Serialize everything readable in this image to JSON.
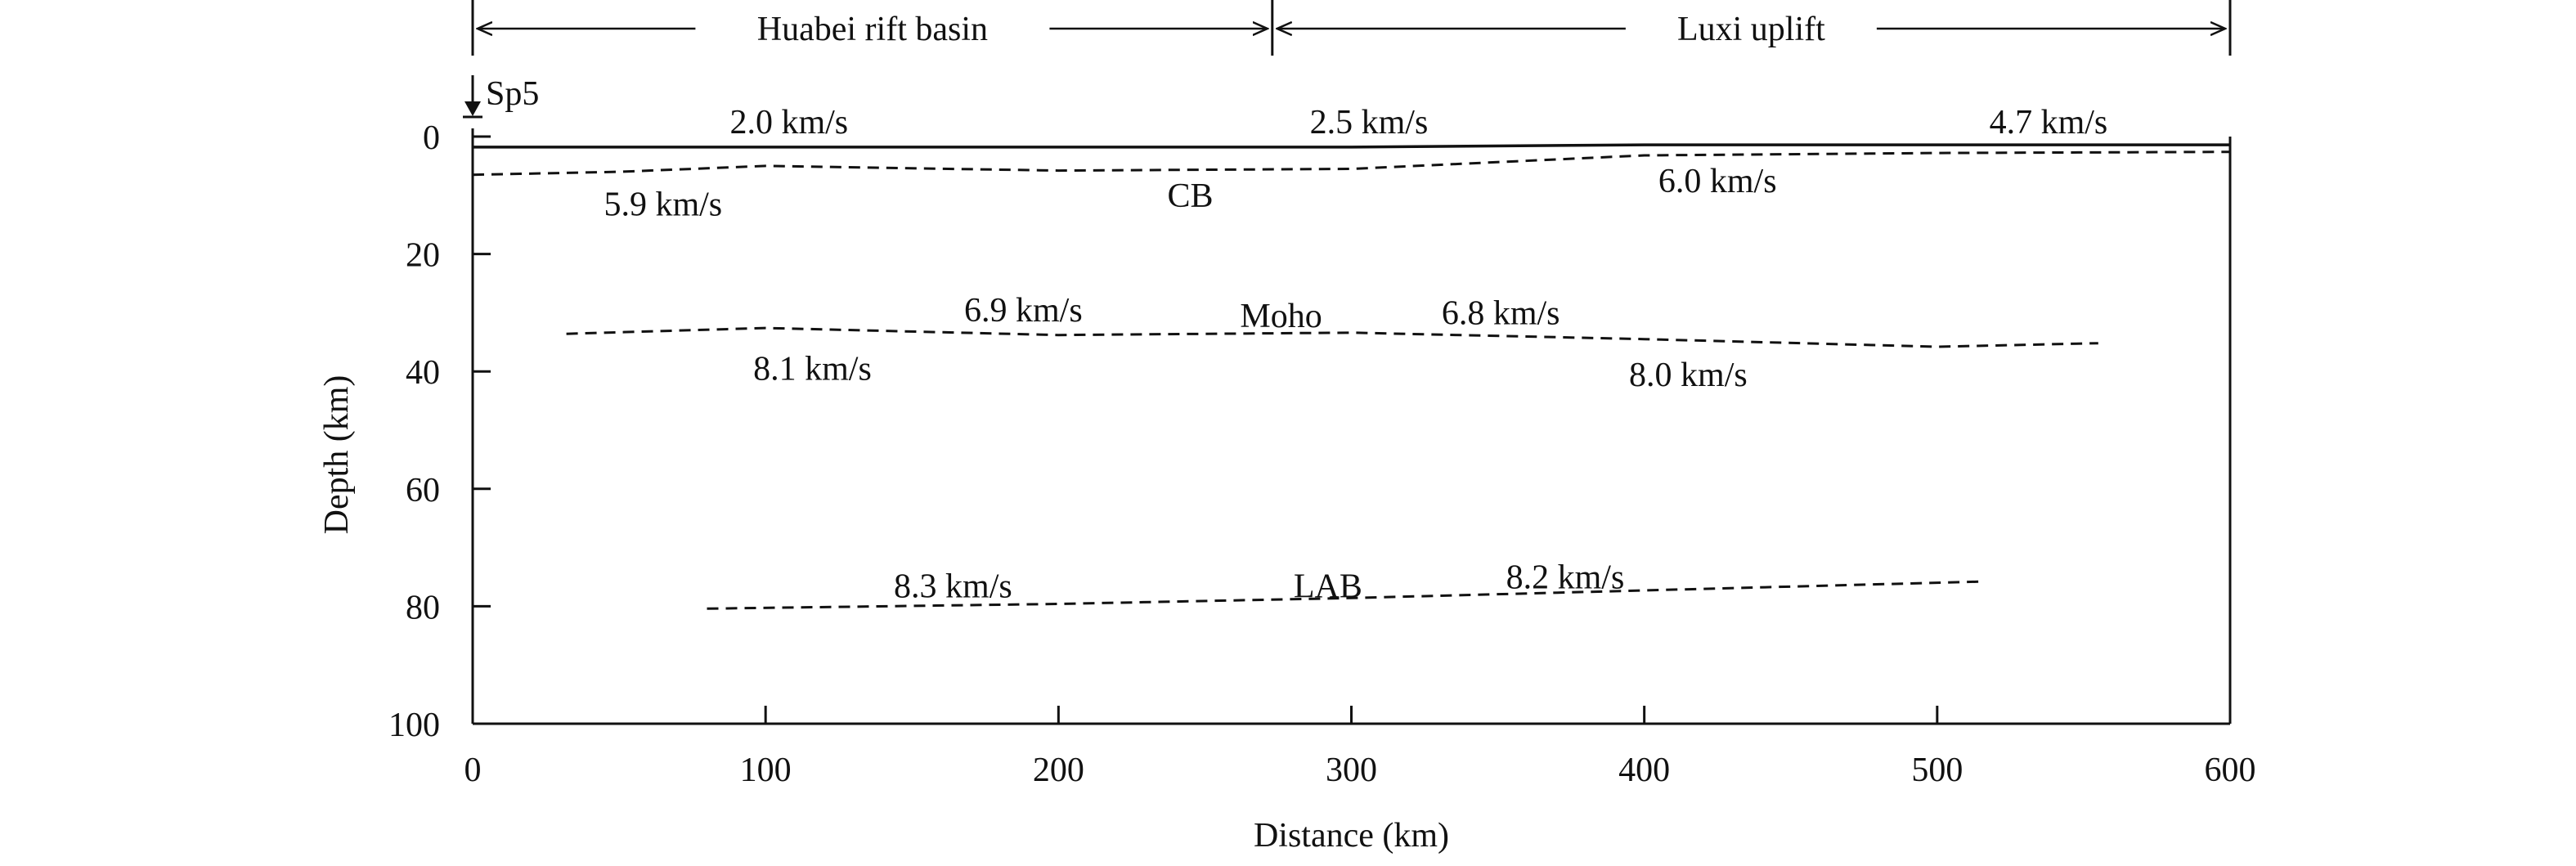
{
  "chart_data": {
    "type": "line",
    "title": "",
    "xlabel": "Distance (km)",
    "ylabel": "Depth (km)",
    "xlim": [
      0,
      600
    ],
    "ylim": [
      0,
      100
    ],
    "y_inverted": true,
    "grid": false,
    "x_ticks": [
      "0",
      "100",
      "200",
      "300",
      "400",
      "500",
      "600"
    ],
    "y_ticks": [
      "0",
      "20",
      "40",
      "60",
      "80",
      "100"
    ],
    "regions": [
      {
        "name": "Huabei rift basin",
        "x_range": [
          0,
          273
        ]
      },
      {
        "name": "Luxi uplift",
        "x_range": [
          273,
          600
        ]
      }
    ],
    "shot_point": {
      "label": "Sp5",
      "x": 0
    },
    "interfaces": [
      {
        "name": "",
        "style": "solid",
        "points": [
          [
            0,
            1.8
          ],
          [
            300,
            1.8
          ],
          [
            400,
            1.4
          ],
          [
            600,
            1.4
          ]
        ]
      },
      {
        "name": "CB",
        "style": "dashed",
        "points": [
          [
            0,
            6.5
          ],
          [
            50,
            6.0
          ],
          [
            100,
            5.0
          ],
          [
            200,
            5.8
          ],
          [
            300,
            5.5
          ],
          [
            400,
            3.2
          ],
          [
            500,
            2.8
          ],
          [
            600,
            2.6
          ]
        ]
      },
      {
        "name": "Moho",
        "style": "dashed",
        "points": [
          [
            32,
            33.6
          ],
          [
            100,
            32.6
          ],
          [
            200,
            33.8
          ],
          [
            300,
            33.4
          ],
          [
            400,
            34.5
          ],
          [
            500,
            35.8
          ],
          [
            555,
            35.2
          ]
        ]
      },
      {
        "name": "LAB",
        "style": "dashed",
        "points": [
          [
            80,
            80.4
          ],
          [
            200,
            79.6
          ],
          [
            300,
            78.6
          ],
          [
            400,
            77.3
          ],
          [
            515,
            75.8
          ]
        ]
      }
    ],
    "annotations": [
      {
        "text": "2.0 km/s",
        "x": 108,
        "y": -2.5
      },
      {
        "text": "2.5 km/s",
        "x": 306,
        "y": -2.5
      },
      {
        "text": "4.7 km/s",
        "x": 538,
        "y": -2.5
      },
      {
        "text": "5.9 km/s",
        "x": 65,
        "y": 11.5
      },
      {
        "text": "CB",
        "x": 245,
        "y": 10.0
      },
      {
        "text": "6.0 km/s",
        "x": 425,
        "y": 7.5
      },
      {
        "text": "6.9 km/s",
        "x": 188,
        "y": 29.5
      },
      {
        "text": "Moho",
        "x": 276,
        "y": 30.5
      },
      {
        "text": "6.8 km/s",
        "x": 351,
        "y": 30.0
      },
      {
        "text": "8.1 km/s",
        "x": 116,
        "y": 39.5
      },
      {
        "text": "8.0 km/s",
        "x": 415,
        "y": 40.5
      },
      {
        "text": "8.3 km/s",
        "x": 164,
        "y": 76.5
      },
      {
        "text": "LAB",
        "x": 292,
        "y": 76.5
      },
      {
        "text": "8.2 km/s",
        "x": 373,
        "y": 75.0
      }
    ]
  }
}
